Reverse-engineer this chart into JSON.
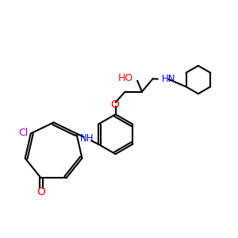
{
  "bg_color": "#ffffff",
  "bond_color": "#000000",
  "cl_color": "#7f00ff",
  "o_color": "#ff0000",
  "n_color": "#0000ff",
  "line_width": 1.5,
  "figsize": [
    3.0,
    3.0
  ],
  "dpi": 100,
  "xlim": [
    0,
    10
  ],
  "ylim": [
    0,
    10
  ]
}
